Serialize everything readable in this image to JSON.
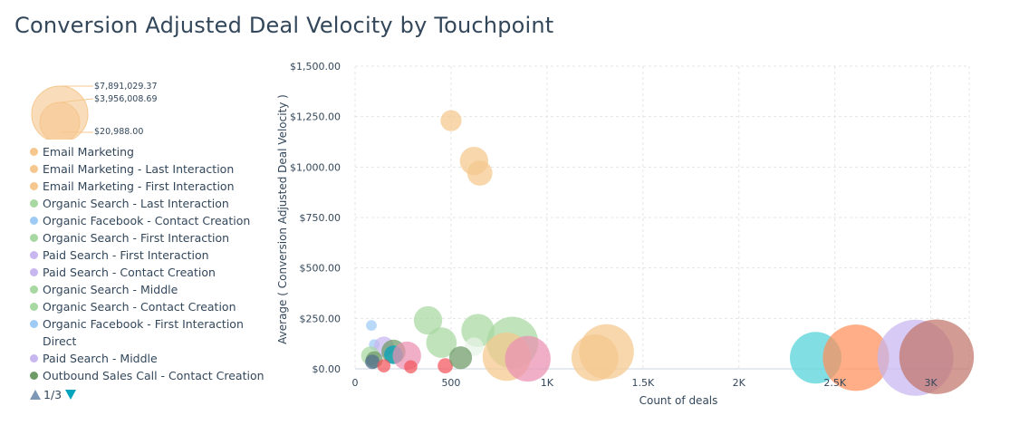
{
  "title": "Conversion Adjusted Deal Velocity by Touchpoint",
  "size_legend": {
    "labels": [
      "$7,891,029.37",
      "$3,956,008.69",
      "$20,988.00"
    ],
    "color": "#f5c78e"
  },
  "legend": {
    "items": [
      {
        "label": "Email Marketing",
        "color": "#f5c78e"
      },
      {
        "label": "Email Marketing - Last Interaction",
        "color": "#f5c78e"
      },
      {
        "label": "Email Marketing - First Interaction",
        "color": "#f5c78e"
      },
      {
        "label": "Organic Search - Last Interaction",
        "color": "#a8d8a1"
      },
      {
        "label": "Organic Facebook - Contact Creation",
        "color": "#9ecbf5"
      },
      {
        "label": "Organic Search - First Interaction",
        "color": "#a8d8a1"
      },
      {
        "label": "Paid Search - First Interaction",
        "color": "#c8b6f0"
      },
      {
        "label": "Paid Search - Contact Creation",
        "color": "#c8b6f0"
      },
      {
        "label": "Organic Search - Middle",
        "color": "#a8d8a1"
      },
      {
        "label": "Organic Search - Contact Creation",
        "color": "#a8d8a1"
      },
      {
        "label": "Organic Facebook - First Interaction",
        "color": "#9ecbf5"
      },
      {
        "label": "Direct",
        "color": ""
      },
      {
        "label": "Paid Search - Middle",
        "color": "#c8b6f0"
      },
      {
        "label": "Outbound Sales Call - Contact Creation",
        "color": "#6e9a66"
      }
    ],
    "page": "1/3"
  },
  "chart_data": {
    "type": "scatter",
    "title": "Conversion Adjusted Deal Velocity by Touchpoint",
    "xlabel": "Count of deals",
    "ylabel": "Average ( Conversion Adjusted Deal Velocity )",
    "xlim": [
      0,
      3200
    ],
    "ylim": [
      0,
      1500
    ],
    "x_ticks": [
      0,
      500,
      1000,
      1500,
      2000,
      2500,
      3000
    ],
    "x_tick_labels": [
      "0",
      "500",
      "1K",
      "1.5K",
      "2K",
      "2.5K",
      "3K"
    ],
    "y_ticks": [
      0,
      250,
      500,
      750,
      1000,
      1250,
      1500
    ],
    "y_tick_labels": [
      "$0.00",
      "$250.00",
      "$500.00",
      "$750.00",
      "$1,000.00",
      "$1,250.00",
      "$1,500.00"
    ],
    "grid": true,
    "legend_position": "left",
    "points": [
      {
        "x": 500,
        "y": 1230,
        "size": 380000,
        "color": "#f5c78e"
      },
      {
        "x": 620,
        "y": 1030,
        "size": 700000,
        "color": "#f5c78e"
      },
      {
        "x": 650,
        "y": 970,
        "size": 550000,
        "color": "#f5c78e"
      },
      {
        "x": 380,
        "y": 240,
        "size": 700000,
        "color": "#a8d8a1"
      },
      {
        "x": 450,
        "y": 130,
        "size": 800000,
        "color": "#a8d8a1"
      },
      {
        "x": 640,
        "y": 190,
        "size": 950000,
        "color": "#a8d8a1"
      },
      {
        "x": 820,
        "y": 130,
        "size": 2300000,
        "color": "#a8d8a1"
      },
      {
        "x": 620,
        "y": 110,
        "size": 300000,
        "color": "#e8f4e6"
      },
      {
        "x": 85,
        "y": 215,
        "size": 100000,
        "color": "#9ecbf5"
      },
      {
        "x": 100,
        "y": 120,
        "size": 100000,
        "color": "#9ecbf5"
      },
      {
        "x": 150,
        "y": 110,
        "size": 350000,
        "color": "#c8b6f0"
      },
      {
        "x": 80,
        "y": 65,
        "size": 300000,
        "color": "#a8d8a1"
      },
      {
        "x": 200,
        "y": 85,
        "size": 500000,
        "color": "#6e9a66"
      },
      {
        "x": 200,
        "y": 70,
        "size": 300000,
        "color": "#00a4bd"
      },
      {
        "x": 270,
        "y": 65,
        "size": 700000,
        "color": "#ea90b1"
      },
      {
        "x": 100,
        "y": 45,
        "size": 250000,
        "color": "#6e9a66"
      },
      {
        "x": 90,
        "y": 35,
        "size": 180000,
        "color": "#516f90"
      },
      {
        "x": 150,
        "y": 15,
        "size": 150000,
        "color": "#f2545b"
      },
      {
        "x": 290,
        "y": 10,
        "size": 150000,
        "color": "#f2545b"
      },
      {
        "x": 470,
        "y": 15,
        "size": 200000,
        "color": "#f2545b"
      },
      {
        "x": 550,
        "y": 55,
        "size": 450000,
        "color": "#6e9a66"
      },
      {
        "x": 790,
        "y": 60,
        "size": 2000000,
        "color": "#f5c78e"
      },
      {
        "x": 900,
        "y": 50,
        "size": 1800000,
        "color": "#ea90b1"
      },
      {
        "x": 1250,
        "y": 55,
        "size": 1900000,
        "color": "#f5c78e"
      },
      {
        "x": 1310,
        "y": 85,
        "size": 2600000,
        "color": "#f5c78e"
      },
      {
        "x": 2400,
        "y": 55,
        "size": 2300000,
        "color": "#51d3d9"
      },
      {
        "x": 2610,
        "y": 55,
        "size": 3800000,
        "color": "#ff8f59"
      },
      {
        "x": 2920,
        "y": 55,
        "size": 5000000,
        "color": "#c8b6f0"
      },
      {
        "x": 3030,
        "y": 60,
        "size": 4800000,
        "color": "#c0756a"
      }
    ]
  }
}
